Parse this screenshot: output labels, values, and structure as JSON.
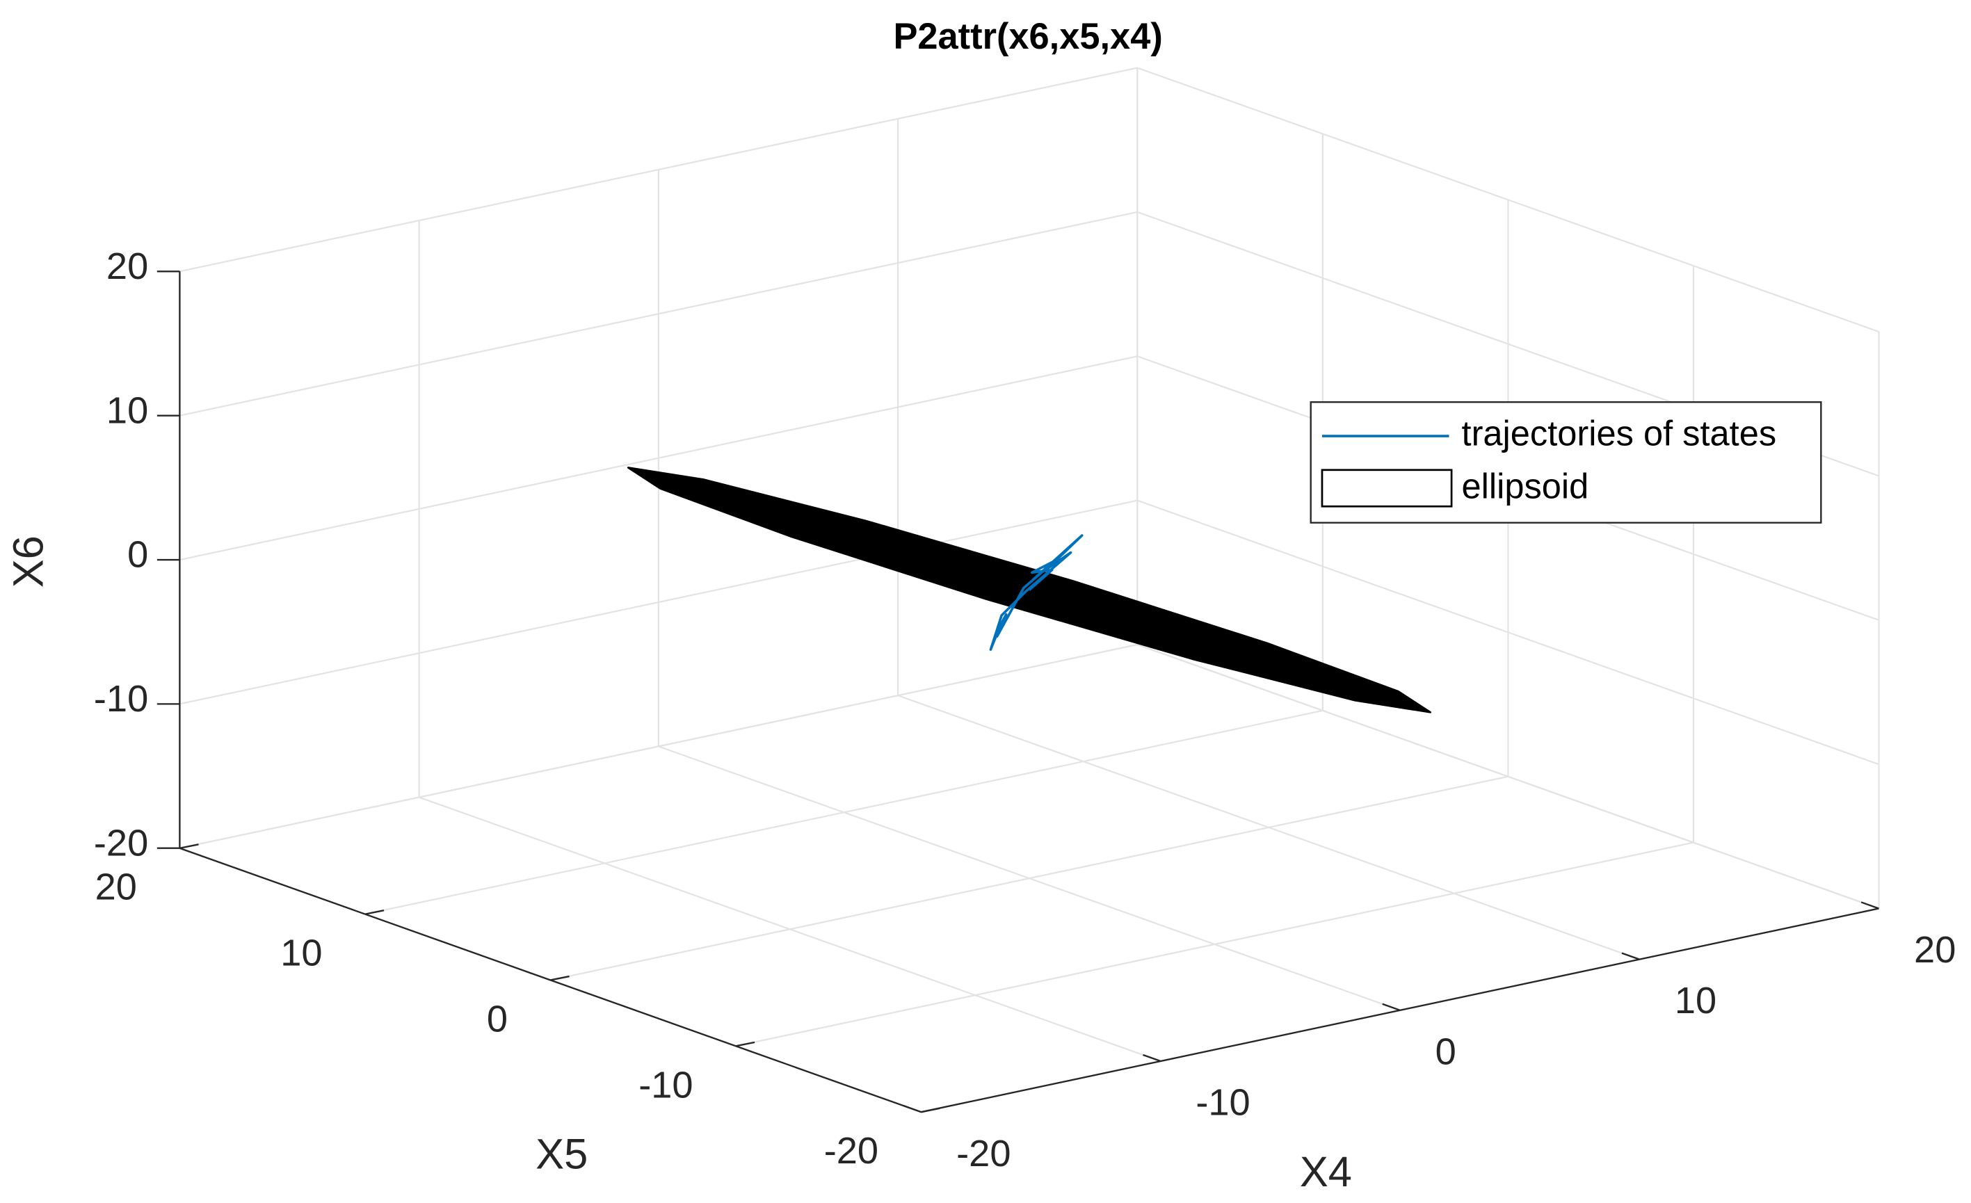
{
  "chart_data": {
    "type": "line3d",
    "title": "P2attr(x6,x5,x4)",
    "xlabel": "X4",
    "ylabel": "X5",
    "zlabel": "X6",
    "xlim": [
      -20,
      20
    ],
    "ylim": [
      -20,
      20
    ],
    "zlim": [
      -20,
      20
    ],
    "xticks": [
      -20,
      -10,
      0,
      10,
      20
    ],
    "yticks": [
      -20,
      -10,
      0,
      10,
      20
    ],
    "zticks": [
      -20,
      -10,
      0,
      10,
      20
    ],
    "grid": true,
    "legend": "northeast",
    "series": [
      {
        "name": "trajectories of states",
        "color": "#0072bd",
        "mark": "line",
        "x": [
          0.3,
          2.2,
          1,
          1.5,
          0.2,
          -1,
          -2,
          -1.2,
          -0.5,
          -1.5,
          0,
          1.2,
          0.5,
          0.8,
          0
        ],
        "y": [
          0.2,
          0,
          0.3,
          -0.3,
          0.4,
          0.2,
          -0.5,
          0,
          0.6,
          -0.2,
          0.3,
          0.1,
          0.5,
          -0.2,
          0
        ],
        "z": [
          0.5,
          3,
          1,
          2.2,
          -0.3,
          -1.5,
          -3.2,
          -2,
          -1.8,
          -2.6,
          0,
          1.6,
          0.8,
          1.2,
          0
        ]
      },
      {
        "name": "ellipsoid",
        "color": "#000000",
        "mark": "surface",
        "x": [
          -1.5,
          -0.4,
          0.81,
          1.8,
          2.31,
          2.2,
          1.5,
          0.4,
          -0.81,
          -1.8,
          -2.31,
          -2.2
        ],
        "y": [
          19.7,
          17.06,
          9.85,
          0,
          -9.85,
          -17.06,
          -19.7,
          -17.06,
          -9.85,
          0,
          9.85,
          17.06
        ],
        "z": [
          0,
          0,
          0,
          0,
          0,
          0,
          0,
          0,
          0,
          0,
          0,
          0
        ]
      }
    ]
  }
}
